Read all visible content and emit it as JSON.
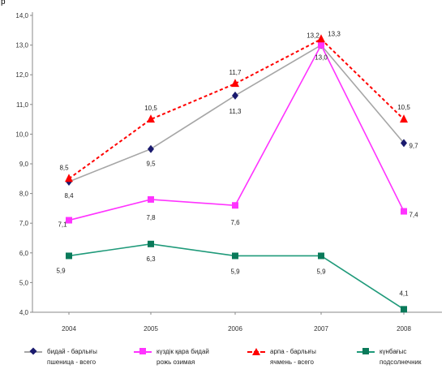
{
  "corner_text": "р",
  "chart_data": {
    "type": "line",
    "title": "",
    "xlabel": "",
    "ylabel": "",
    "categories": [
      "2004",
      "2005",
      "2006",
      "2007",
      "2008"
    ],
    "ylim": [
      4.0,
      14.0
    ],
    "y_ticks": [
      "4,0",
      "5,0",
      "6,0",
      "7,0",
      "8,0",
      "9,0",
      "10,0",
      "11,0",
      "12,0",
      "13,0",
      "14,0"
    ],
    "grid": false,
    "legend_position": "bottom",
    "series": [
      {
        "name": "бидай - барлығы",
        "name2": "пшеница - всего",
        "values": [
          8.4,
          9.5,
          11.3,
          13.0,
          9.7
        ],
        "labels": [
          "8,4",
          "9,5",
          "11,3",
          "13,0",
          "9,7"
        ],
        "color": "#a6a6a6",
        "marker_color": "#1a1a6e",
        "marker": "diamond",
        "dash": false
      },
      {
        "name": "күздік қара бидай",
        "name2": "рожь озимая",
        "values": [
          7.1,
          7.8,
          7.6,
          13.0,
          7.4
        ],
        "labels": [
          "7,1",
          "7,8",
          "7,6",
          "",
          "7,4"
        ],
        "color": "#ff33ff",
        "marker_color": "#ff33ff",
        "marker": "square",
        "dash": false
      },
      {
        "name": "арпа - барлығы",
        "name2": "ячмень - всего",
        "values": [
          8.5,
          10.5,
          11.7,
          13.2,
          10.5
        ],
        "labels": [
          "8,5",
          "10,5",
          "11,7",
          "13,2",
          "10,5"
        ],
        "extra_labels": [
          {
            "index": 3,
            "text": "13,3"
          }
        ],
        "color": "#ff0000",
        "marker_color": "#ff0000",
        "marker": "triangle",
        "dash": true
      },
      {
        "name": "күнбағыс",
        "name2": "подсолнечник",
        "values": [
          5.9,
          6.3,
          5.9,
          5.9,
          4.1
        ],
        "labels": [
          "5,9",
          "6,3",
          "5,9",
          "5,9",
          "4,1"
        ],
        "color": "#1f9a7a",
        "marker_color": "#0a7a5a",
        "marker": "square",
        "dash": false
      }
    ]
  }
}
